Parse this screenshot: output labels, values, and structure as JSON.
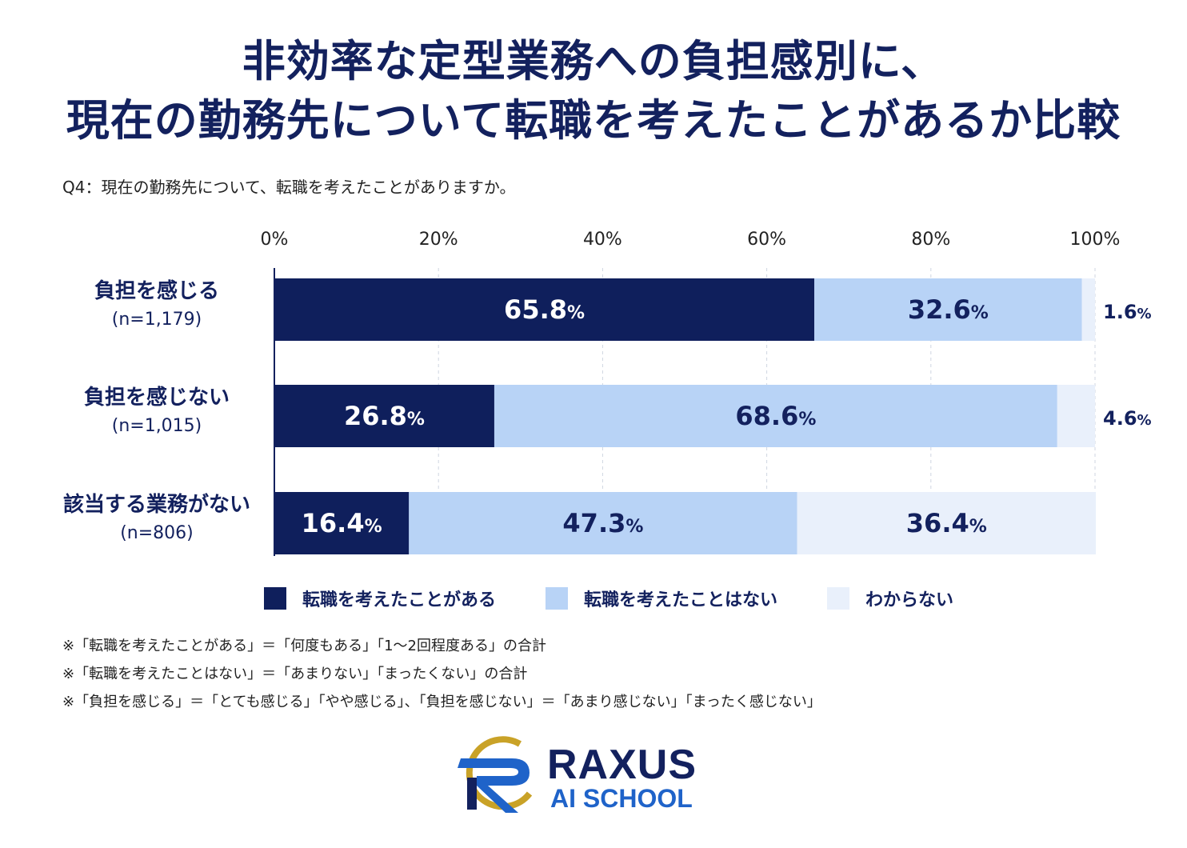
{
  "title_line1": "非効率な定型業務への負担感別に、",
  "title_line2": "現在の勤務先について転職を考えたことがあるか比較",
  "question": "Q4：現在の勤務先について、転職を考えたことがありますか。",
  "colors": {
    "dark": "#0f1f5c",
    "light": "#b8d3f6",
    "pale": "#e9f0fb"
  },
  "chart_data": {
    "type": "bar",
    "orientation": "horizontal",
    "stacked": true,
    "x_ticks": [
      "0%",
      "20%",
      "40%",
      "60%",
      "80%",
      "100%"
    ],
    "xlim": [
      0,
      100
    ],
    "categories": [
      {
        "label": "負担を感じる",
        "n": "(n=1,179)"
      },
      {
        "label": "負担を感じない",
        "n": "(n=1,015)"
      },
      {
        "label": "該当する業務がない",
        "n": "(n=806)"
      }
    ],
    "series": [
      {
        "name": "転職を考えたことがある",
        "values": [
          65.8,
          26.8,
          16.4
        ],
        "labels": [
          "65.8",
          "26.8",
          "16.4"
        ]
      },
      {
        "name": "転職を考えたことはない",
        "values": [
          32.6,
          68.6,
          47.3
        ],
        "labels": [
          "32.6",
          "68.6",
          "47.3"
        ]
      },
      {
        "name": "わからない",
        "values": [
          1.6,
          4.6,
          36.4
        ],
        "labels": [
          "1.6",
          "4.6",
          "36.4"
        ]
      }
    ],
    "percent_sign": "%",
    "grid": true,
    "legend_position": "bottom"
  },
  "notes": [
    "※「転職を考えたことがある」＝「何度もある」「1〜2回程度ある」の合計",
    "※「転職を考えたことはない」＝「あまりない」「まったくない」の合計",
    "※「負担を感じる」＝「とても感じる」「やや感じる」、「負担を感じない」＝「あまり感じない」「まったく感じない」"
  ],
  "logo": {
    "line1": "RAXUS",
    "line2": "AI SCHOOL"
  }
}
